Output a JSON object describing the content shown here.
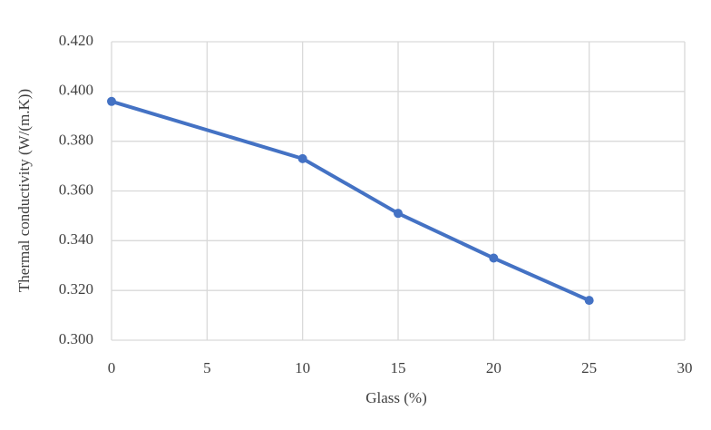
{
  "chart_data": {
    "type": "line",
    "xlabel": "Glass (%)",
    "ylabel": "Thermal conductivity (W/(m.K))",
    "x": [
      0,
      10,
      15,
      20,
      25
    ],
    "series": [
      {
        "color": "#4472c4",
        "values": [
          0.396,
          0.373,
          0.351,
          0.333,
          0.316
        ]
      }
    ],
    "xlim": [
      0,
      30
    ],
    "xticks": [
      0,
      5,
      10,
      15,
      20,
      25,
      30
    ],
    "ylim": [
      0.3,
      0.42
    ],
    "yticks": [
      {
        "value": 0.3,
        "label": "0.300"
      },
      {
        "value": 0.32,
        "label": "0.320"
      },
      {
        "value": 0.34,
        "label": "0.340"
      },
      {
        "value": 0.36,
        "label": "0.360"
      },
      {
        "value": 0.38,
        "label": "0.380"
      },
      {
        "value": 0.4,
        "label": "0.400"
      },
      {
        "value": 0.42,
        "label": "0.420"
      }
    ],
    "grid": true
  }
}
